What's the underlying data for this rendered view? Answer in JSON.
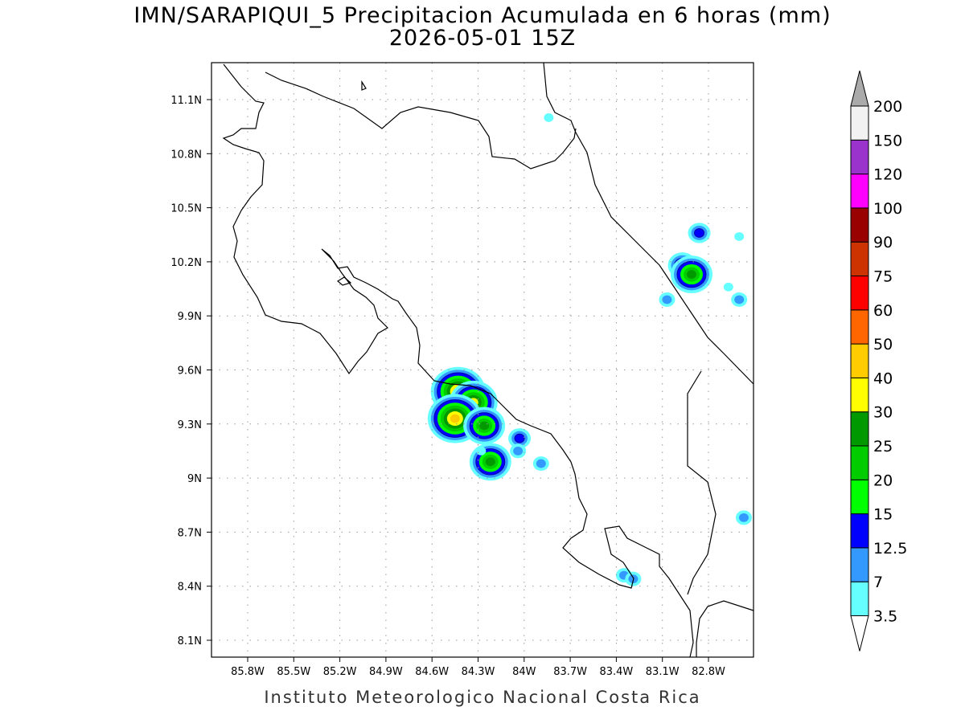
{
  "title": "IMN/SARAPIQUI_5 Precipitacion Acumulada en 6 horas (mm)",
  "subtitle": "2026-05-01 15Z",
  "footer": "Instituto Meteorologico Nacional Costa Rica",
  "map": {
    "lon_ticks": [
      "85.8W",
      "85.5W",
      "85.2W",
      "84.9W",
      "84.6W",
      "84.3W",
      "84W",
      "83.7W",
      "83.4W",
      "83.1W",
      "82.8W"
    ],
    "lat_ticks": [
      "11.1N",
      "10.8N",
      "10.5N",
      "10.2N",
      "9.9N",
      "9.6N",
      "9.3N",
      "9N",
      "8.7N",
      "8.4N",
      "8.1N"
    ],
    "grid": true,
    "precip_cells": [
      {
        "lon": -84.43,
        "lat": 9.48,
        "max_mm": 40
      },
      {
        "lon": -84.33,
        "lat": 9.42,
        "max_mm": 30
      },
      {
        "lon": -84.45,
        "lat": 9.33,
        "max_mm": 40
      },
      {
        "lon": -84.26,
        "lat": 9.29,
        "max_mm": 25
      },
      {
        "lon": -84.22,
        "lat": 9.09,
        "max_mm": 25
      },
      {
        "lon": -84.03,
        "lat": 9.22,
        "max_mm": 12.5
      },
      {
        "lon": -84.04,
        "lat": 9.15,
        "max_mm": 7
      },
      {
        "lon": -84.28,
        "lat": 9.15,
        "max_mm": 3.5
      },
      {
        "lon": -83.89,
        "lat": 9.08,
        "max_mm": 7
      },
      {
        "lon": -83.84,
        "lat": 11.0,
        "max_mm": 3.5
      },
      {
        "lon": -82.86,
        "lat": 10.36,
        "max_mm": 12.5
      },
      {
        "lon": -82.97,
        "lat": 10.18,
        "max_mm": 15
      },
      {
        "lon": -82.91,
        "lat": 10.13,
        "max_mm": 25
      },
      {
        "lon": -83.07,
        "lat": 9.99,
        "max_mm": 7
      },
      {
        "lon": -82.6,
        "lat": 9.99,
        "max_mm": 7
      },
      {
        "lon": -82.6,
        "lat": 10.34,
        "max_mm": 3.5
      },
      {
        "lon": -82.67,
        "lat": 10.06,
        "max_mm": 3.5
      },
      {
        "lon": -82.57,
        "lat": 8.78,
        "max_mm": 7
      },
      {
        "lon": -83.35,
        "lat": 8.46,
        "max_mm": 7
      },
      {
        "lon": -83.29,
        "lat": 8.44,
        "max_mm": 7
      }
    ]
  },
  "colorbar": {
    "labels": [
      "3.5",
      "7",
      "12.5",
      "15",
      "20",
      "25",
      "30",
      "40",
      "50",
      "60",
      "75",
      "90",
      "100",
      "120",
      "150",
      "200"
    ],
    "colors": [
      "#66ffff",
      "#3399ff",
      "#0000ff",
      "#00ff00",
      "#00cc00",
      "#009900",
      "#ffff00",
      "#ffcc00",
      "#ff6600",
      "#ff0000",
      "#cc3300",
      "#990000",
      "#ff00ff",
      "#9933cc",
      "#f2f2f2"
    ],
    "over_color": "#aaaaaa",
    "under_color": "#ffffff",
    "levels": [
      3.5,
      7,
      12.5,
      15,
      20,
      25,
      30,
      40,
      50,
      60,
      75,
      90,
      100,
      120,
      150,
      200
    ]
  }
}
